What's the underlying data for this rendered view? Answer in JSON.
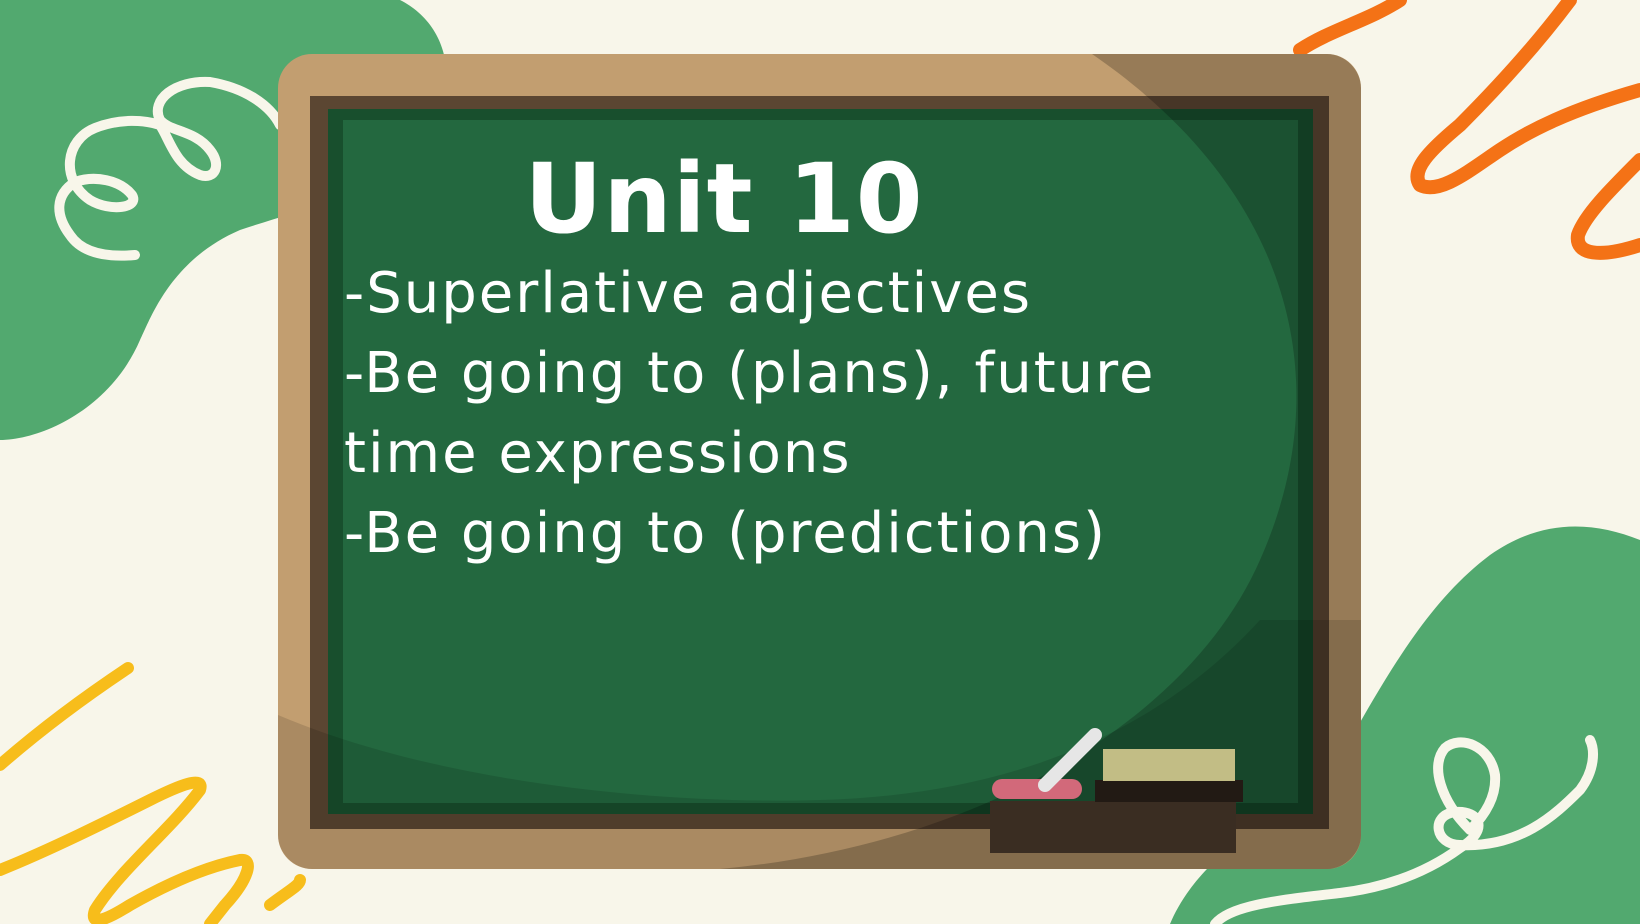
{
  "slide": {
    "title": "Unit 10",
    "lines": [
      "-Superlative adjectives",
      "-Be going to (plans), future",
      "time expressions",
      "-Be going to (predictions)"
    ]
  },
  "colors": {
    "background": "#f8f6ea",
    "blob_green": "#52a96f",
    "board_frame": "#c29e70",
    "board_inner_frame": "#5b4632",
    "board_surface": "#23683f",
    "chalk_text": "#ffffff",
    "orange_scribble": "#f47216",
    "yellow_scribble": "#f7bd1b"
  }
}
